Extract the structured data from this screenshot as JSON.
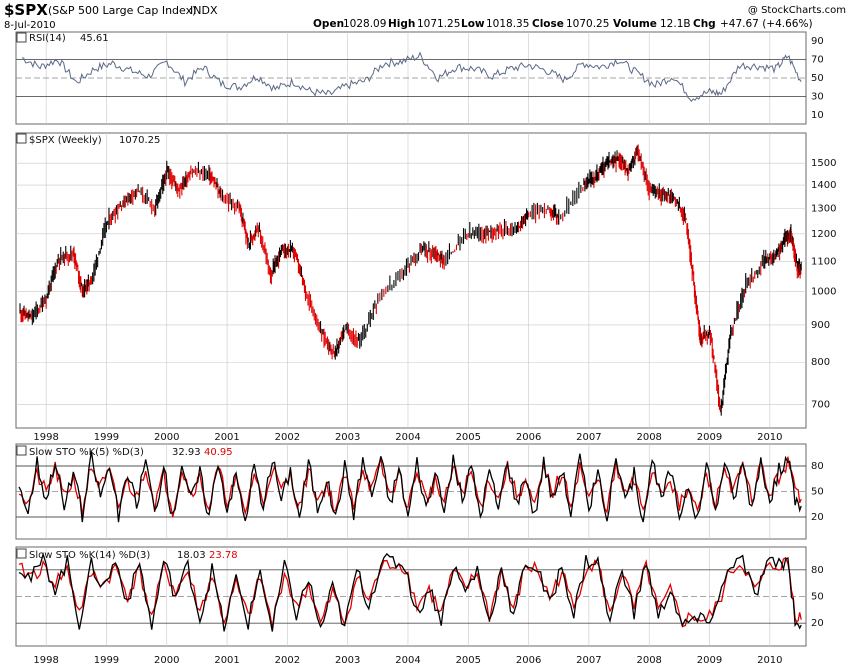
{
  "header": {
    "symbol": "$SPX",
    "name": "(S&P 500 Large Cap Index)",
    "exchange": "INDX",
    "date": "8-Jul-2010",
    "watermark": "@ StockCharts.com",
    "open_label": "Open",
    "open_value": "1028.09",
    "high_label": "High",
    "high_value": "1071.25",
    "low_label": "Low",
    "low_value": "1018.35",
    "close_label": "Close",
    "close_value": "1070.25",
    "volume_label": "Volume",
    "volume_value": "12.1B",
    "chg_label": "Chg",
    "chg_value": "+47.67 (+4.66%)"
  },
  "colors": {
    "panel_bg": "#ffffff",
    "page_bg": "#ffffff",
    "up": "#000000",
    "down": "#e00000",
    "rsi_line": "#5a6a86",
    "rsi_fill": "#8aa0b0",
    "grid": "#c8c8c8",
    "k_line": "#000000",
    "d_line": "#e00000"
  },
  "chart_data": [
    {
      "type": "line",
      "panel": "rsi",
      "title_prefix": "RSI(14)",
      "title_value": "45.61",
      "ylim": [
        0,
        100
      ],
      "yticks": [
        10,
        30,
        50,
        70,
        90
      ],
      "reference_lines": [
        30,
        50,
        70
      ],
      "x": [
        1997.6,
        1997.9,
        1998.2,
        1998.5,
        1998.8,
        1999.1,
        1999.4,
        1999.7,
        2000.0,
        2000.3,
        2000.6,
        2000.9,
        2001.2,
        2001.5,
        2001.8,
        2002.1,
        2002.4,
        2002.7,
        2003.0,
        2003.3,
        2003.6,
        2003.9,
        2004.2,
        2004.5,
        2004.8,
        2005.1,
        2005.4,
        2005.7,
        2006.0,
        2006.3,
        2006.6,
        2006.9,
        2007.2,
        2007.5,
        2007.8,
        2008.1,
        2008.4,
        2008.7,
        2009.0,
        2009.2,
        2009.5,
        2009.8,
        2010.1,
        2010.3,
        2010.52
      ],
      "values": [
        72,
        62,
        70,
        45,
        60,
        66,
        58,
        52,
        68,
        46,
        62,
        44,
        40,
        52,
        38,
        46,
        35,
        32,
        42,
        47,
        66,
        68,
        74,
        50,
        62,
        60,
        52,
        60,
        64,
        58,
        48,
        66,
        62,
        70,
        55,
        42,
        52,
        28,
        35,
        33,
        64,
        63,
        60,
        74,
        46
      ]
    },
    {
      "type": "line",
      "panel": "price",
      "title_prefix": "$SPX (Weekly)",
      "title_value": "1070.25",
      "scale": "log",
      "ylim": [
        650,
        1650
      ],
      "yticks": [
        700,
        800,
        900,
        1000,
        1100,
        1200,
        1300,
        1400,
        1500
      ],
      "xticks": [
        "1998",
        "1999",
        "2000",
        "2001",
        "2002",
        "2003",
        "2004",
        "2005",
        "2006",
        "2007",
        "2008",
        "2009",
        "2010"
      ],
      "x": [
        1997.55,
        1997.75,
        1998.0,
        1998.2,
        1998.45,
        1998.6,
        1998.75,
        1999.0,
        1999.25,
        1999.5,
        1999.8,
        2000.0,
        2000.2,
        2000.4,
        2000.7,
        2000.9,
        2001.2,
        2001.35,
        2001.5,
        2001.72,
        2001.9,
        2002.1,
        2002.3,
        2002.55,
        2002.78,
        2002.95,
        2003.2,
        2003.5,
        2003.9,
        2004.2,
        2004.45,
        2004.6,
        2004.95,
        2005.25,
        2005.5,
        2005.8,
        2006.0,
        2006.35,
        2006.5,
        2006.9,
        2007.1,
        2007.3,
        2007.5,
        2007.65,
        2007.8,
        2008.0,
        2008.2,
        2008.4,
        2008.6,
        2008.75,
        2008.85,
        2009.0,
        2009.18,
        2009.35,
        2009.6,
        2009.9,
        2010.1,
        2010.25,
        2010.35,
        2010.45,
        2010.52
      ],
      "values": [
        940,
        920,
        980,
        1110,
        1130,
        1000,
        1040,
        1240,
        1320,
        1380,
        1300,
        1460,
        1380,
        1460,
        1450,
        1350,
        1300,
        1160,
        1230,
        1050,
        1140,
        1140,
        1000,
        880,
        820,
        890,
        850,
        980,
        1060,
        1140,
        1130,
        1100,
        1200,
        1200,
        1220,
        1220,
        1280,
        1300,
        1260,
        1400,
        1440,
        1500,
        1520,
        1460,
        1560,
        1380,
        1360,
        1350,
        1260,
        1000,
        860,
        880,
        680,
        880,
        1020,
        1100,
        1120,
        1180,
        1200,
        1080,
        1070
      ]
    },
    {
      "type": "line",
      "panel": "sto_fast",
      "title_prefix": "Slow STO %K(5) %D(3)",
      "k_value": "32.93",
      "d_value": "40.95",
      "ylim": [
        0,
        100
      ],
      "yticks": [
        20,
        50,
        80
      ],
      "reference_lines": [
        20,
        50,
        80
      ],
      "x": [
        1997.55,
        1997.7,
        1997.85,
        1998.0,
        1998.15,
        1998.3,
        1998.45,
        1998.6,
        1998.75,
        1998.9,
        1999.05,
        1999.2,
        1999.35,
        1999.5,
        1999.65,
        1999.8,
        1999.95,
        2000.1,
        2000.25,
        2000.4,
        2000.55,
        2000.7,
        2000.85,
        2001.0,
        2001.15,
        2001.3,
        2001.45,
        2001.6,
        2001.75,
        2001.9,
        2002.05,
        2002.2,
        2002.35,
        2002.5,
        2002.65,
        2002.8,
        2002.95,
        2003.1,
        2003.25,
        2003.4,
        2003.55,
        2003.7,
        2003.85,
        2004.0,
        2004.15,
        2004.3,
        2004.45,
        2004.6,
        2004.75,
        2004.9,
        2005.05,
        2005.2,
        2005.35,
        2005.5,
        2005.65,
        2005.8,
        2005.95,
        2006.1,
        2006.25,
        2006.4,
        2006.55,
        2006.7,
        2006.85,
        2007.0,
        2007.15,
        2007.3,
        2007.45,
        2007.6,
        2007.75,
        2007.9,
        2008.05,
        2008.2,
        2008.35,
        2008.5,
        2008.65,
        2008.8,
        2008.95,
        2009.1,
        2009.25,
        2009.4,
        2009.55,
        2009.7,
        2009.85,
        2010.0,
        2010.15,
        2010.3,
        2010.42,
        2010.52
      ],
      "k": [
        60,
        25,
        85,
        40,
        88,
        30,
        75,
        20,
        90,
        45,
        80,
        22,
        70,
        35,
        88,
        25,
        78,
        18,
        85,
        40,
        72,
        20,
        88,
        30,
        70,
        15,
        82,
        25,
        90,
        40,
        75,
        20,
        85,
        30,
        65,
        18,
        80,
        25,
        88,
        45,
        90,
        35,
        78,
        20,
        85,
        30,
        70,
        25,
        88,
        40,
        80,
        22,
        75,
        30,
        88,
        35,
        70,
        20,
        85,
        40,
        78,
        25,
        90,
        30,
        72,
        20,
        88,
        35,
        70,
        18,
        85,
        40,
        75,
        22,
        60,
        15,
        80,
        25,
        88,
        40,
        85,
        30,
        90,
        35,
        75,
        90,
        40,
        33
      ],
      "d": [
        55,
        35,
        70,
        48,
        78,
        42,
        65,
        30,
        80,
        55,
        72,
        32,
        62,
        42,
        80,
        35,
        70,
        28,
        76,
        48,
        66,
        30,
        78,
        40,
        62,
        25,
        72,
        35,
        80,
        50,
        68,
        30,
        76,
        40,
        58,
        28,
        70,
        35,
        78,
        52,
        82,
        45,
        70,
        30,
        76,
        40,
        62,
        35,
        78,
        50,
        72,
        32,
        66,
        40,
        78,
        45,
        62,
        30,
        76,
        50,
        70,
        35,
        80,
        40,
        64,
        30,
        78,
        45,
        62,
        28,
        76,
        50,
        66,
        32,
        52,
        25,
        70,
        35,
        78,
        50,
        78,
        40,
        82,
        45,
        68,
        84,
        52,
        41
      ]
    },
    {
      "type": "line",
      "panel": "sto_slow",
      "title_prefix": "Slow STO %K(14) %D(3)",
      "k_value": "18.03",
      "d_value": "23.78",
      "ylim": [
        0,
        100
      ],
      "yticks": [
        20,
        50,
        80
      ],
      "reference_lines": [
        20,
        50,
        80
      ],
      "x": [
        1997.55,
        1997.75,
        1997.95,
        1998.15,
        1998.35,
        1998.55,
        1998.75,
        1998.95,
        1999.15,
        1999.35,
        1999.55,
        1999.75,
        1999.95,
        2000.15,
        2000.35,
        2000.55,
        2000.75,
        2000.95,
        2001.15,
        2001.35,
        2001.55,
        2001.75,
        2001.95,
        2002.15,
        2002.35,
        2002.55,
        2002.75,
        2002.95,
        2003.15,
        2003.35,
        2003.55,
        2003.75,
        2003.95,
        2004.15,
        2004.35,
        2004.55,
        2004.75,
        2004.95,
        2005.15,
        2005.35,
        2005.55,
        2005.75,
        2005.95,
        2006.15,
        2006.35,
        2006.55,
        2006.75,
        2006.95,
        2007.15,
        2007.35,
        2007.55,
        2007.75,
        2007.95,
        2008.15,
        2008.35,
        2008.55,
        2008.75,
        2008.95,
        2009.15,
        2009.35,
        2009.55,
        2009.75,
        2009.95,
        2010.15,
        2010.3,
        2010.42,
        2010.52
      ],
      "k": [
        85,
        70,
        90,
        60,
        88,
        20,
        85,
        60,
        90,
        45,
        88,
        15,
        90,
        50,
        85,
        25,
        80,
        15,
        70,
        20,
        80,
        10,
        85,
        30,
        70,
        12,
        60,
        15,
        80,
        40,
        88,
        90,
        85,
        30,
        60,
        25,
        85,
        55,
        80,
        20,
        85,
        25,
        90,
        80,
        40,
        85,
        30,
        90,
        88,
        20,
        85,
        30,
        90,
        25,
        60,
        15,
        25,
        20,
        45,
        88,
        90,
        50,
        85,
        88,
        90,
        25,
        18
      ],
      "d": [
        80,
        74,
        82,
        66,
        80,
        32,
        76,
        64,
        82,
        52,
        80,
        25,
        82,
        56,
        78,
        32,
        74,
        22,
        64,
        26,
        72,
        18,
        78,
        36,
        64,
        18,
        55,
        20,
        72,
        45,
        82,
        88,
        84,
        40,
        58,
        30,
        78,
        58,
        76,
        28,
        78,
        32,
        84,
        80,
        48,
        78,
        36,
        84,
        86,
        28,
        78,
        36,
        84,
        32,
        55,
        22,
        28,
        22,
        42,
        80,
        88,
        55,
        80,
        86,
        88,
        32,
        24
      ]
    }
  ]
}
